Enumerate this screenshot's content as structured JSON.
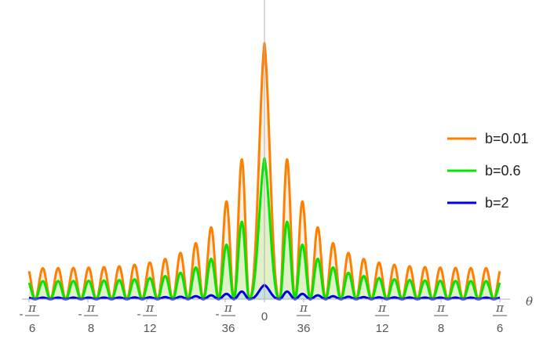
{
  "chart_data": {
    "type": "line",
    "xlabel": "θ",
    "ylabel": "",
    "title": "",
    "xlim": [
      -0.5236,
      0.5236
    ],
    "ylim": [
      0,
      1
    ],
    "filled": true,
    "legend_position": "right",
    "x_ticks": [
      {
        "value": -0.5236,
        "sign": "-",
        "num": "π",
        "den": "6"
      },
      {
        "value": -0.3927,
        "sign": "-",
        "num": "π",
        "den": "8"
      },
      {
        "value": -0.2618,
        "sign": "-",
        "num": "π",
        "den": "12"
      },
      {
        "value": -0.0873,
        "sign": "-",
        "num": "π",
        "den": "36"
      },
      {
        "value": 0,
        "sign": "",
        "num": "",
        "den": "",
        "label": "0"
      },
      {
        "value": 0.0873,
        "sign": "",
        "num": "π",
        "den": "36"
      },
      {
        "value": 0.2618,
        "sign": "",
        "num": "π",
        "den": "12"
      },
      {
        "value": 0.3927,
        "sign": "",
        "num": "π",
        "den": "8"
      },
      {
        "value": 0.5236,
        "sign": "",
        "num": "π",
        "den": "6"
      }
    ],
    "series": [
      {
        "name": "b=0.01",
        "color": "#ff8000",
        "fill": "#fde3cc",
        "peak": 1.0,
        "floor": 0.12,
        "decay": 7.5
      },
      {
        "name": "b=0.6",
        "color": "#00e600",
        "fill": "#c8f0b0",
        "peak": 0.55,
        "floor": 0.07,
        "decay": 7.5
      },
      {
        "name": "b=2",
        "color": "#0000e6",
        "fill": "#b3d9f2",
        "peak": 0.055,
        "floor": 0.006,
        "decay": 7.5
      }
    ],
    "lobe_spacing": 0.034
  }
}
